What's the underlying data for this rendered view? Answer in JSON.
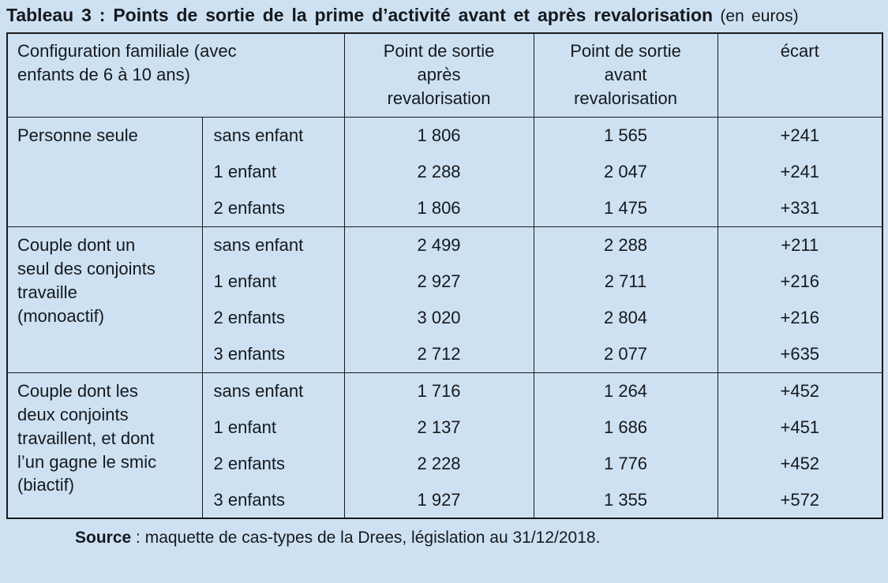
{
  "page": {
    "background_color": "#cee1f2",
    "text_color": "#15191e",
    "border_color": "#1a1a1a"
  },
  "title": {
    "bold": "Tableau 3 : Points de sortie de la prime d’activité avant et après revalorisation",
    "normal": " (en euros)"
  },
  "table": {
    "header": {
      "config": "Configuration familiale (avec\nenfants de 6 à 10 ans)",
      "after": "Point de sortie\naprès\nrevalorisation",
      "before": "Point de sortie\navant\nrevalorisation",
      "ecart": "écart"
    },
    "groups": [
      {
        "label": "Personne seule",
        "rows": [
          {
            "family": "sans enfant",
            "after": "1 806",
            "before": "1 565",
            "ecart": "+241"
          },
          {
            "family": "1 enfant",
            "after": "2 288",
            "before": "2 047",
            "ecart": "+241"
          },
          {
            "family": "2 enfants",
            "after": "1 806",
            "before": "1 475",
            "ecart": "+331"
          }
        ]
      },
      {
        "label": "Couple dont un\nseul des conjoints\ntravaille\n(monoactif)",
        "rows": [
          {
            "family": "sans enfant",
            "after": "2 499",
            "before": "2 288",
            "ecart": "+211"
          },
          {
            "family": "1 enfant",
            "after": "2 927",
            "before": "2 711",
            "ecart": "+216"
          },
          {
            "family": "2 enfants",
            "after": "3 020",
            "before": "2 804",
            "ecart": "+216"
          },
          {
            "family": "3 enfants",
            "after": "2 712",
            "before": "2 077",
            "ecart": "+635"
          }
        ]
      },
      {
        "label": "Couple dont les\ndeux conjoints\ntravaillent, et dont\nl’un gagne le smic\n(biactif)",
        "rows": [
          {
            "family": "sans enfant",
            "after": "1 716",
            "before": "1 264",
            "ecart": "+452"
          },
          {
            "family": "1 enfant",
            "after": "2 137",
            "before": "1 686",
            "ecart": "+451"
          },
          {
            "family": "2 enfants",
            "after": "2 228",
            "before": "1 776",
            "ecart": "+452"
          },
          {
            "family": "3 enfants",
            "after": "1 927",
            "before": "1 355",
            "ecart": "+572"
          }
        ]
      }
    ]
  },
  "source": {
    "label": "Source",
    "text": " : maquette de cas-types de la Drees, législation au 31/12/2018."
  }
}
